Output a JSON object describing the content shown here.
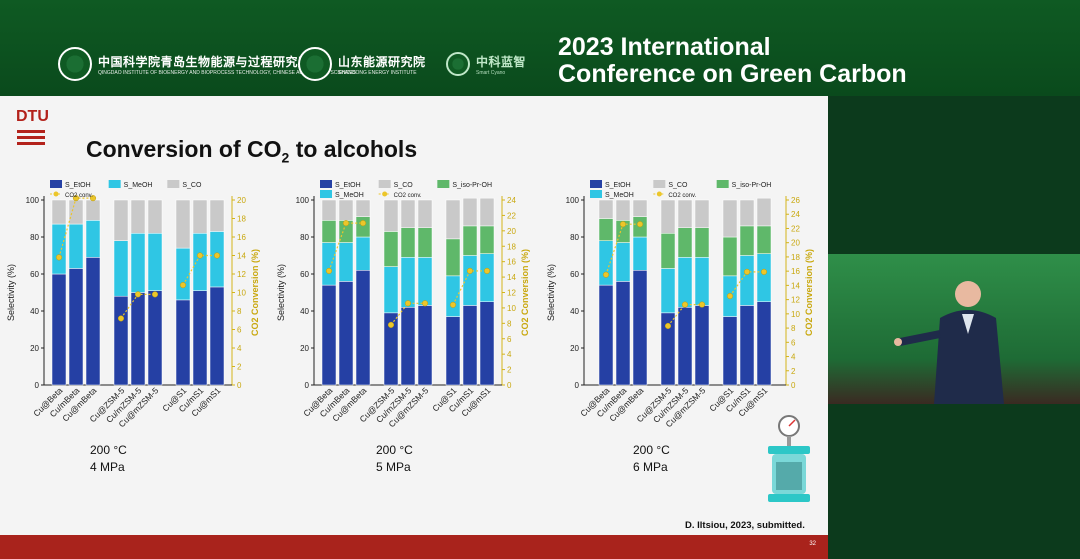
{
  "conference": {
    "title_line1": "2023 International",
    "title_line2": "Conference on Green Carbon"
  },
  "logos": [
    {
      "name": "中国科学院青岛生物能源与过程研究所",
      "sub": "QINGDAO INSTITUTE OF BIOENERGY AND BIOPROCESS TECHNOLOGY, CHINESE ACADEMY OF SCIENCES"
    },
    {
      "name": "山东能源研究院",
      "sub": "SHANDONG ENERGY INSTITUTE"
    },
    {
      "name": "中科蓝智",
      "sub": "Smart Cyano"
    }
  ],
  "slide": {
    "dtu": "DTU",
    "title_main": "Conversion of CO",
    "title_sub": "2",
    "title_end": " to alcohols",
    "citation": "D. Iltsiou,  2023, submitted.",
    "page_number": "32"
  },
  "chart_data": [
    {
      "type": "bar",
      "subtype": "stacked-bar-with-line",
      "conditions": [
        "200 °C",
        "4 MPa"
      ],
      "ylabel": "Selectivity (%)",
      "y2label": "CO2 Conversion (%)",
      "ylim": [
        0,
        100
      ],
      "y2lim": [
        0,
        20
      ],
      "yticks": [
        0,
        20,
        40,
        60,
        80,
        100
      ],
      "y2ticks": [
        0,
        2,
        4,
        6,
        8,
        10,
        12,
        14,
        16,
        18,
        20
      ],
      "legend": [
        "S_EtOH",
        "S_MeOH",
        "S_CO",
        "CO2 conv."
      ],
      "categories": [
        "Cu@Beta",
        "Cu/mBeta",
        "Cu@mBeta",
        "Cu@ZSM-5",
        "Cu/mZSM-5",
        "Cu@mZSM-5",
        "Cu@S1",
        "Cu/mS1",
        "Cu@mS1"
      ],
      "groups": [
        [
          0,
          1,
          2
        ],
        [
          3,
          4,
          5
        ],
        [
          6,
          7,
          8
        ]
      ],
      "series": [
        {
          "name": "S_EtOH",
          "color": "#2540a4",
          "values": [
            60,
            63,
            69,
            48,
            50,
            51,
            46,
            51,
            53
          ]
        },
        {
          "name": "S_MeOH",
          "color": "#2fc6e4",
          "values": [
            27,
            24,
            20,
            30,
            32,
            31,
            28,
            31,
            30
          ]
        },
        {
          "name": "S_CO",
          "color": "#c9c9c9",
          "values": [
            13,
            13,
            11,
            22,
            18,
            18,
            26,
            18,
            17
          ]
        }
      ],
      "line": {
        "name": "CO2 conv.",
        "color": "#ecc62a",
        "values": [
          13.8,
          20.2,
          20.2,
          7.2,
          9.8,
          9.8,
          10.8,
          14.0,
          14.0
        ]
      }
    },
    {
      "type": "bar",
      "subtype": "stacked-bar-with-line",
      "conditions": [
        "200 °C",
        "5 MPa"
      ],
      "ylabel": "Selectivity (%)",
      "y2label": "CO2 Conversion (%)",
      "ylim": [
        0,
        100
      ],
      "y2lim": [
        0,
        24
      ],
      "yticks": [
        0,
        20,
        40,
        60,
        80,
        100
      ],
      "y2ticks": [
        0,
        2,
        4,
        6,
        8,
        10,
        12,
        14,
        16,
        18,
        20,
        22,
        24
      ],
      "legend": [
        "S_EtOH",
        "S_CO",
        "S_iso-Pr-OH",
        "S_MeOH",
        "CO2 conv."
      ],
      "categories": [
        "Cu@Beta",
        "Cu/mBeta",
        "Cu@mBeta",
        "Cu@ZSM-5",
        "Cu/mZSM-5",
        "Cu@mZSM-5",
        "Cu@S1",
        "Cu/mS1",
        "Cu@mS1"
      ],
      "groups": [
        [
          0,
          1,
          2
        ],
        [
          3,
          4,
          5
        ],
        [
          6,
          7,
          8
        ]
      ],
      "series": [
        {
          "name": "S_EtOH",
          "color": "#2540a4",
          "values": [
            54,
            56,
            62,
            39,
            42,
            43,
            37,
            43,
            45
          ]
        },
        {
          "name": "S_MeOH",
          "color": "#2fc6e4",
          "values": [
            23,
            21,
            18,
            25,
            27,
            26,
            22,
            27,
            26
          ]
        },
        {
          "name": "S_iso-Pr-OH",
          "color": "#5fb86a",
          "values": [
            12,
            12,
            11,
            19,
            16,
            16,
            20,
            16,
            15
          ]
        },
        {
          "name": "S_CO",
          "color": "#c9c9c9",
          "values": [
            11,
            11,
            9,
            17,
            15,
            15,
            21,
            15,
            15
          ]
        }
      ],
      "line": {
        "name": "CO2 conv.",
        "color": "#ecc62a",
        "values": [
          14.8,
          21.0,
          21.0,
          7.8,
          10.6,
          10.6,
          10.4,
          14.8,
          14.8
        ]
      }
    },
    {
      "type": "bar",
      "subtype": "stacked-bar-with-line",
      "conditions": [
        "200 °C",
        "6 MPa"
      ],
      "ylabel": "Selectivity (%)",
      "y2label": "CO2 Conversion (%)",
      "ylim": [
        0,
        100
      ],
      "y2lim": [
        0,
        26
      ],
      "yticks": [
        0,
        20,
        40,
        60,
        80,
        100
      ],
      "y2ticks": [
        0,
        2,
        4,
        6,
        8,
        10,
        12,
        14,
        16,
        18,
        20,
        22,
        24,
        26
      ],
      "legend": [
        "S_EtOH",
        "S_CO",
        "S_iso-Pr-OH",
        "S_MeOH",
        "CO2 conv."
      ],
      "categories": [
        "Cu@Beta",
        "Cu/mBeta",
        "Cu@mBeta",
        "Cu@ZSM-5",
        "Cu/mZSM-5",
        "Cu@mZSM-5",
        "Cu@S1",
        "Cu/mS1",
        "Cu@mS1"
      ],
      "groups": [
        [
          0,
          1,
          2
        ],
        [
          3,
          4,
          5
        ],
        [
          6,
          7,
          8
        ]
      ],
      "series": [
        {
          "name": "S_EtOH",
          "color": "#2540a4",
          "values": [
            54,
            56,
            62,
            39,
            42,
            43,
            37,
            43,
            45
          ]
        },
        {
          "name": "S_MeOH",
          "color": "#2fc6e4",
          "values": [
            24,
            21,
            18,
            24,
            27,
            26,
            22,
            27,
            26
          ]
        },
        {
          "name": "S_iso-Pr-OH",
          "color": "#5fb86a",
          "values": [
            12,
            12,
            11,
            19,
            16,
            16,
            21,
            16,
            15
          ]
        },
        {
          "name": "S_CO",
          "color": "#c9c9c9",
          "values": [
            10,
            11,
            9,
            18,
            15,
            15,
            20,
            14,
            15
          ]
        }
      ],
      "line": {
        "name": "CO2 conv.",
        "color": "#ecc62a",
        "values": [
          15.5,
          22.6,
          22.6,
          8.3,
          11.3,
          11.3,
          12.5,
          15.9,
          15.9
        ]
      }
    }
  ]
}
